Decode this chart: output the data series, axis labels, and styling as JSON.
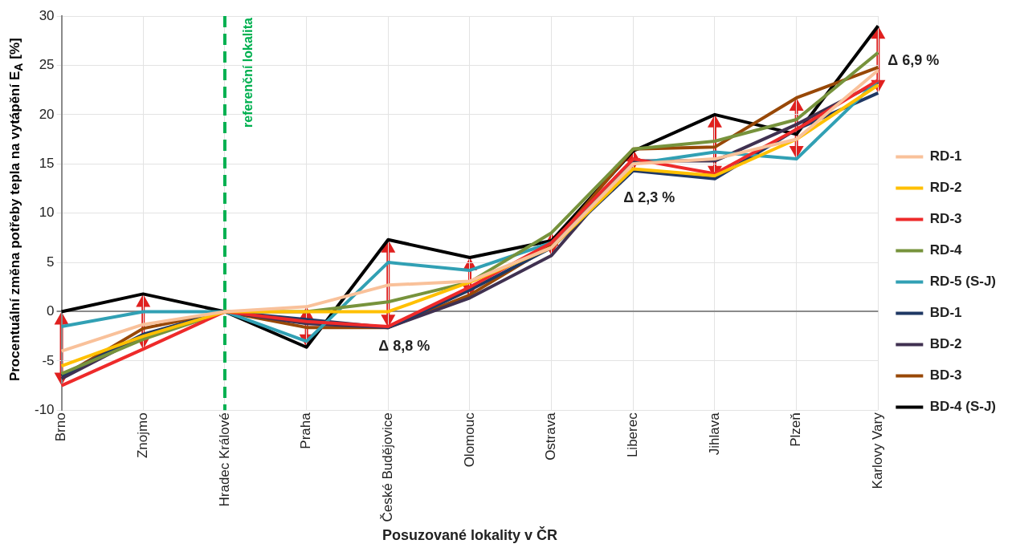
{
  "chart_data": {
    "type": "line",
    "xlabel": "Posuzované lokality v ČR",
    "ylabel": "Procentuální změna potřeby tepla na vytápění E$_{A}$ [%]",
    "categories": [
      "Brno",
      "Znojmo",
      "Hradec Králové",
      "Praha",
      "České Budějovice",
      "Olomouc",
      "Ostrava",
      "Liberec",
      "Jihlava",
      "Plzeň",
      "Karlovy Vary"
    ],
    "series": [
      {
        "name": "RD-1",
        "color": "#f9c19a",
        "values": [
          -4,
          -1.3,
          0,
          0.5,
          2.7,
          3.1,
          6.5,
          15,
          15.5,
          17.5,
          24.5
        ]
      },
      {
        "name": "RD-2",
        "color": "#ffc000",
        "values": [
          -5.5,
          -2.5,
          0,
          0,
          0,
          3,
          6.5,
          14.5,
          13.8,
          17.5,
          23
        ]
      },
      {
        "name": "RD-3",
        "color": "#ee2a2a",
        "values": [
          -7.5,
          -3.8,
          0,
          -1,
          -1.5,
          2.5,
          7,
          15.5,
          14,
          18.5,
          23.5
        ]
      },
      {
        "name": "RD-4",
        "color": "#77933c",
        "values": [
          -6.3,
          -2.8,
          0,
          0,
          1,
          3,
          8,
          16.5,
          17.3,
          19.5,
          26.3
        ]
      },
      {
        "name": "RD-5 (S-J)",
        "color": "#31a0b4",
        "values": [
          -1.5,
          0,
          0,
          -3,
          5,
          4.2,
          7,
          15,
          16.2,
          15.5,
          23.5
        ]
      },
      {
        "name": "BD-1",
        "color": "#1f3864",
        "values": [
          -6.5,
          -2.3,
          0,
          -0.8,
          -1.6,
          2.2,
          6.5,
          14.3,
          13.5,
          18.5,
          22.2
        ]
      },
      {
        "name": "BD-2",
        "color": "#403151",
        "values": [
          -6.8,
          -2.5,
          0,
          -1.2,
          -1.6,
          1.4,
          5.7,
          15.3,
          15.3,
          19,
          23.3
        ]
      },
      {
        "name": "BD-3",
        "color": "#984807",
        "values": [
          -6.6,
          -1.7,
          0,
          -1.6,
          -1.6,
          1.7,
          6.7,
          16.5,
          16.7,
          21.7,
          24.8
        ]
      },
      {
        "name": "BD-4 (S-J)",
        "color": "#000000",
        "values": [
          0,
          1.8,
          0,
          -3.6,
          7.3,
          5.5,
          7.2,
          16.3,
          20,
          18,
          29
        ]
      }
    ],
    "ylim": [
      -10,
      30
    ],
    "yticks": [
      -10,
      -5,
      0,
      5,
      10,
      15,
      20,
      25,
      30
    ],
    "grid": true,
    "legend": "right",
    "marker": "none",
    "line_style": "solid",
    "ref_lines": [
      {
        "axis": "x",
        "value": "Hradec Králové",
        "label": "referenční lokalita",
        "color": "#00b050",
        "line_style": "dashed"
      }
    ],
    "annotations": [
      {
        "text": "Δ 8,8 %",
        "x": "České Budějovice",
        "y": -1.6
      },
      {
        "text": "Δ 2,3 %",
        "x": "Liberec",
        "y": 14.3
      },
      {
        "text": "Δ 6,9 %",
        "x": "Karlovy Vary",
        "y": 22.2
      }
    ]
  }
}
